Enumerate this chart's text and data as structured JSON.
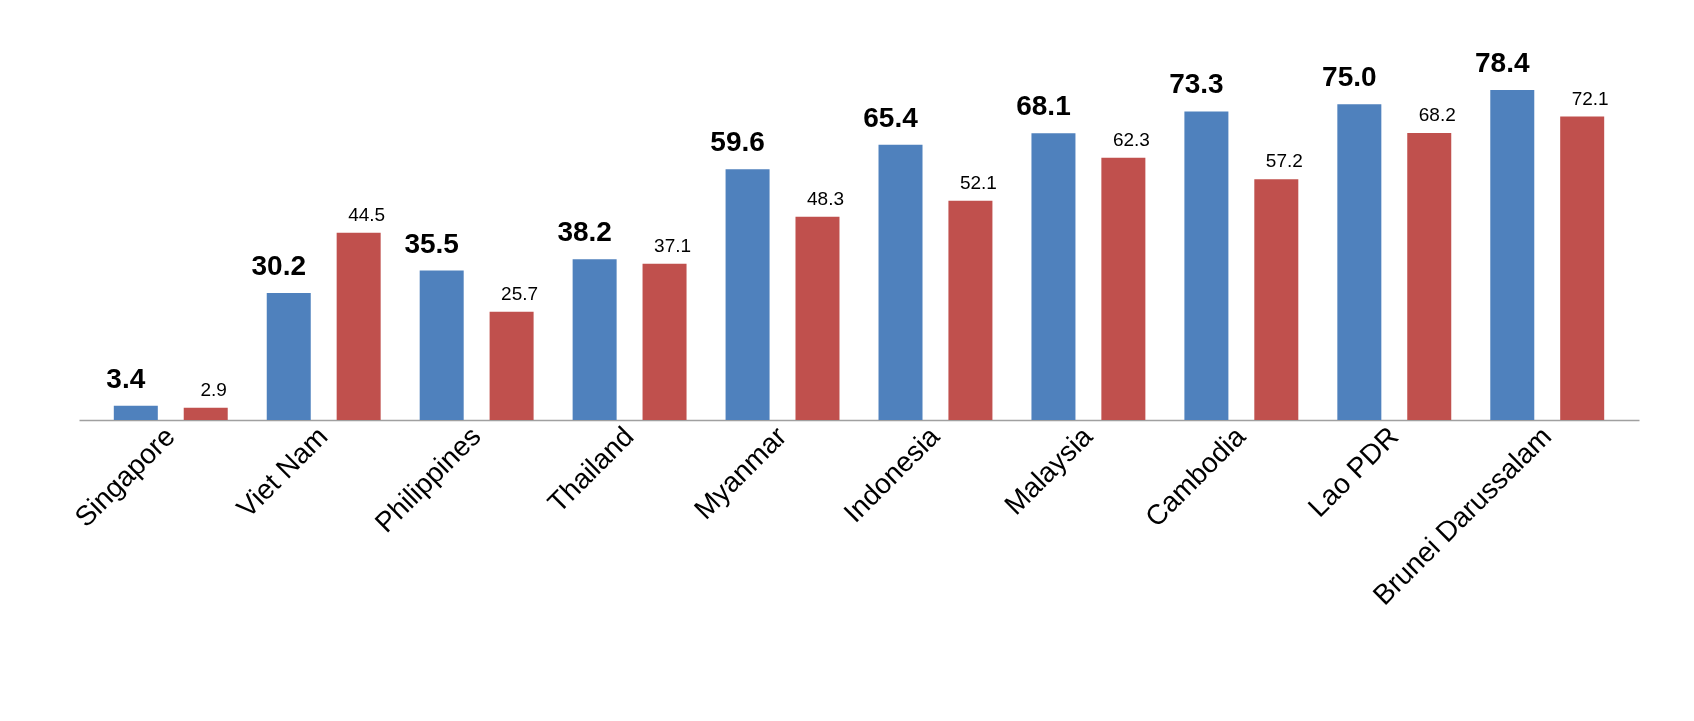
{
  "chart_data": {
    "type": "bar",
    "categories": [
      "Singapore",
      "Viet Nam",
      "Philippines",
      "Thailand",
      "Myanmar",
      "Indonesia",
      "Malaysia",
      "Cambodia",
      "Lao PDR",
      "Brunei Darussalam"
    ],
    "series": [
      {
        "color": "#4f81bd",
        "values": [
          3.4,
          30.2,
          35.5,
          38.2,
          59.6,
          65.4,
          68.1,
          73.3,
          75.0,
          78.4
        ],
        "value_labels": [
          "3.4",
          "30.2",
          "35.5",
          "38.2",
          "59.6",
          "65.4",
          "68.1",
          "73.3",
          "75.0",
          "78.4"
        ]
      },
      {
        "color": "#c0504d",
        "values": [
          2.9,
          44.5,
          25.7,
          37.1,
          48.3,
          52.1,
          62.3,
          57.2,
          68.2,
          72.1
        ],
        "value_labels": [
          "2.9",
          "44.5",
          "25.7",
          "37.1",
          "48.3",
          "52.1",
          "62.3",
          "57.2",
          "68.2",
          "72.1"
        ]
      }
    ],
    "grid": false,
    "legend": false
  }
}
